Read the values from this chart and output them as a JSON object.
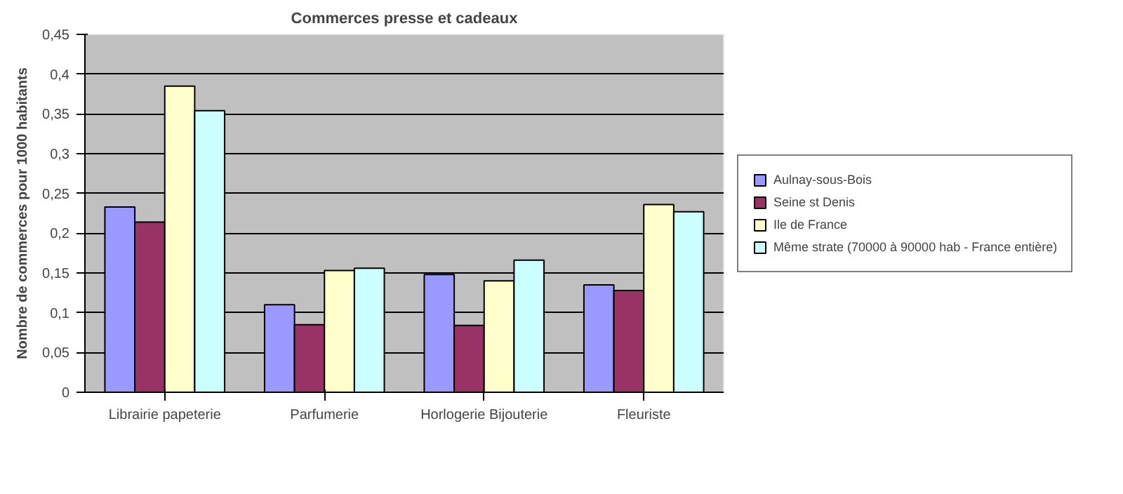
{
  "chart_data": {
    "type": "bar",
    "title": "Commerces presse et cadeaux",
    "ylabel": "Nombre de commerces pour 1000 habitants",
    "categories": [
      "Librairie papeterie",
      "Parfumerie",
      "Horlogerie Bijouterie",
      "Fleuriste"
    ],
    "series": [
      {
        "name": "Aulnay-sous-Bois",
        "color": "#9999ff",
        "values": [
          0.233,
          0.11,
          0.148,
          0.135
        ]
      },
      {
        "name": "Seine st Denis",
        "color": "#993366",
        "values": [
          0.214,
          0.085,
          0.084,
          0.128
        ]
      },
      {
        "name": "Ile de France",
        "color": "#ffffcc",
        "values": [
          0.385,
          0.153,
          0.14,
          0.236
        ]
      },
      {
        "name": "Même strate (70000 à 90000 hab - France entière)",
        "color": "#ccffff",
        "values": [
          0.354,
          0.156,
          0.166,
          0.227
        ]
      }
    ],
    "ylim": [
      0,
      0.45
    ],
    "yticks": [
      {
        "value": 0,
        "label": "0"
      },
      {
        "value": 0.05,
        "label": "0,05"
      },
      {
        "value": 0.1,
        "label": "0,1"
      },
      {
        "value": 0.15,
        "label": "0,15"
      },
      {
        "value": 0.2,
        "label": "0,2"
      },
      {
        "value": 0.25,
        "label": "0,25"
      },
      {
        "value": 0.3,
        "label": "0,3"
      },
      {
        "value": 0.35,
        "label": "0,35"
      },
      {
        "value": 0.4,
        "label": "0,4"
      },
      {
        "value": 0.45,
        "label": "0,45"
      }
    ],
    "grid": "y",
    "legend": "right"
  }
}
